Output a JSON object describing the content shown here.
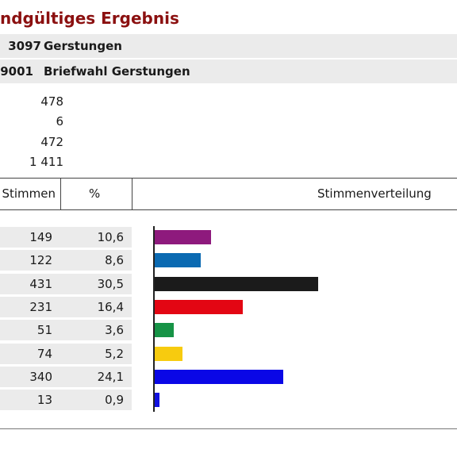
{
  "heading": "ndgültiges Ergebnis",
  "area": {
    "id": "3097",
    "name": "Gerstungen"
  },
  "district": {
    "id": "9001",
    "name": "Briefwahl Gerstungen"
  },
  "summary": [
    "478",
    "6",
    "472",
    "1 411"
  ],
  "table": {
    "col_votes": "Stimmen",
    "col_percent": "%",
    "col_chart": "Stimmenverteilung",
    "rows": [
      {
        "votes": "149",
        "percent": "10,6",
        "color": "#8e1a7d"
      },
      {
        "votes": "122",
        "percent": "8,6",
        "color": "#0b6ab2"
      },
      {
        "votes": "431",
        "percent": "30,5",
        "color": "#1b1b1b"
      },
      {
        "votes": "231",
        "percent": "16,4",
        "color": "#e30613"
      },
      {
        "votes": "51",
        "percent": "3,6",
        "color": "#169346"
      },
      {
        "votes": "74",
        "percent": "5,2",
        "color": "#f7cb0f"
      },
      {
        "votes": "340",
        "percent": "24,1",
        "color": "#0a07e6"
      },
      {
        "votes": "13",
        "percent": "0,9",
        "color": "#1212e0"
      }
    ]
  },
  "chart_data": {
    "type": "bar",
    "orientation": "horizontal",
    "title": "Stimmenverteilung",
    "values_percent": [
      10.6,
      8.6,
      30.5,
      16.4,
      3.6,
      5.2,
      24.1,
      0.9
    ],
    "values_votes": [
      149,
      122,
      431,
      231,
      51,
      74,
      340,
      13
    ],
    "colors": [
      "#8e1a7d",
      "#0b6ab2",
      "#1b1b1b",
      "#e30613",
      "#169346",
      "#f7cb0f",
      "#0a07e6",
      "#1212e0"
    ]
  }
}
